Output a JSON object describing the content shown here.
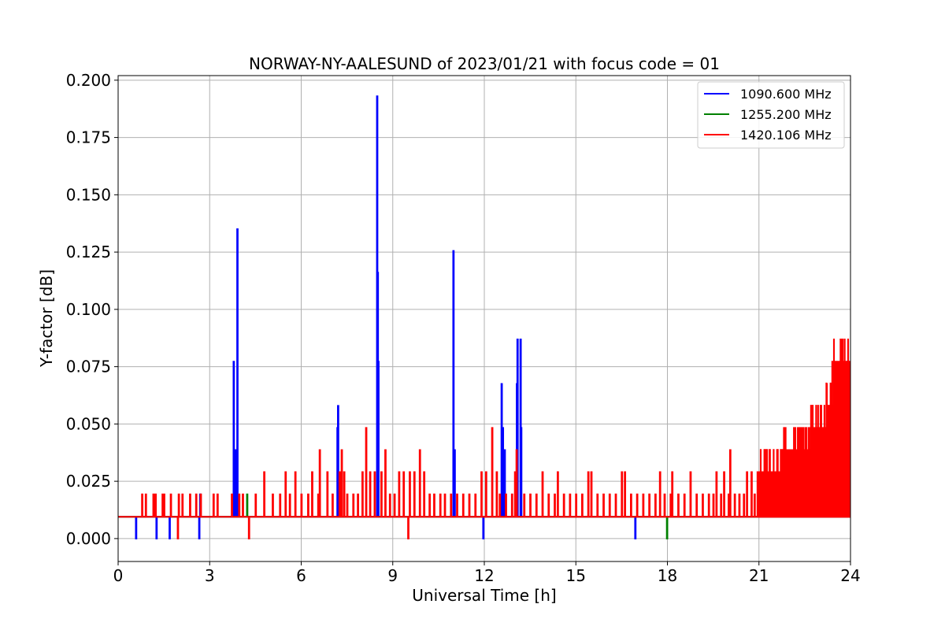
{
  "chart_data": {
    "type": "line",
    "title": "NORWAY-NY-AALESUND of 2023/01/21 with focus code = 01",
    "xlabel": "Universal Time [h]",
    "ylabel": "Y-factor [dB]",
    "xlim": [
      0,
      24
    ],
    "ylim": [
      -0.01,
      0.202
    ],
    "xticks": [
      0,
      3,
      6,
      9,
      12,
      15,
      18,
      21,
      24
    ],
    "xtick_labels": [
      "0",
      "3",
      "6",
      "9",
      "12",
      "15",
      "18",
      "21",
      "24"
    ],
    "yticks": [
      0.0,
      0.025,
      0.05,
      0.075,
      0.1,
      0.125,
      0.15,
      0.175,
      0.2
    ],
    "ytick_labels": [
      "0.000",
      "0.025",
      "0.050",
      "0.075",
      "0.100",
      "0.125",
      "0.150",
      "0.175",
      "0.200"
    ],
    "grid": true,
    "legend_position": "top-right",
    "baseline": 0.0095,
    "series": [
      {
        "name": "1090.600 MHz",
        "color": "#0000ff",
        "spikes": [
          [
            0.58,
            0.0
          ],
          [
            1.25,
            0.0
          ],
          [
            1.68,
            0.0
          ],
          [
            2.65,
            0.0
          ],
          [
            2.68,
            0.0193
          ],
          [
            3.78,
            0.0772
          ],
          [
            3.84,
            0.0386
          ],
          [
            3.9,
            0.135
          ],
          [
            7.18,
            0.0483
          ],
          [
            7.2,
            0.0579
          ],
          [
            8.48,
            0.193
          ],
          [
            8.5,
            0.116
          ],
          [
            8.52,
            0.0772
          ],
          [
            10.98,
            0.1255
          ],
          [
            11.02,
            0.0386
          ],
          [
            11.96,
            0.0
          ],
          [
            12.56,
            0.0675
          ],
          [
            12.6,
            0.0483
          ],
          [
            12.64,
            0.0386
          ],
          [
            12.66,
            0.0386
          ],
          [
            13.06,
            0.0675
          ],
          [
            13.08,
            0.0869
          ],
          [
            13.18,
            0.0869
          ],
          [
            13.2,
            0.0483
          ],
          [
            16.94,
            0.0
          ],
          [
            23.9,
            0.0772
          ],
          [
            23.94,
            0.0675
          ]
        ]
      },
      {
        "name": "1255.200 MHz",
        "color": "#008000",
        "spikes": [
          [
            4.22,
            0.0193
          ],
          [
            17.98,
            0.0
          ]
        ]
      },
      {
        "name": "1420.106 MHz",
        "color": "#ff0000",
        "spikes": [
          [
            0.78,
            0.0193
          ],
          [
            0.9,
            0.0193
          ],
          [
            1.15,
            0.0193
          ],
          [
            1.22,
            0.0193
          ],
          [
            1.45,
            0.0193
          ],
          [
            1.5,
            0.0193
          ],
          [
            1.72,
            0.0193
          ],
          [
            1.95,
            0.0
          ],
          [
            1.98,
            0.0193
          ],
          [
            2.1,
            0.0193
          ],
          [
            2.35,
            0.0193
          ],
          [
            2.55,
            0.0193
          ],
          [
            2.7,
            0.0193
          ],
          [
            3.12,
            0.0193
          ],
          [
            3.25,
            0.0193
          ],
          [
            3.72,
            0.0193
          ],
          [
            3.96,
            0.0193
          ],
          [
            4.08,
            0.0193
          ],
          [
            4.28,
            0.0
          ],
          [
            4.5,
            0.0193
          ],
          [
            4.78,
            0.029
          ],
          [
            5.06,
            0.0193
          ],
          [
            5.3,
            0.0193
          ],
          [
            5.48,
            0.029
          ],
          [
            5.62,
            0.0193
          ],
          [
            5.8,
            0.029
          ],
          [
            6.0,
            0.0193
          ],
          [
            6.22,
            0.0193
          ],
          [
            6.35,
            0.029
          ],
          [
            6.55,
            0.0193
          ],
          [
            6.6,
            0.0386
          ],
          [
            6.85,
            0.029
          ],
          [
            7.02,
            0.0193
          ],
          [
            7.25,
            0.029
          ],
          [
            7.32,
            0.0386
          ],
          [
            7.4,
            0.029
          ],
          [
            7.5,
            0.0193
          ],
          [
            7.7,
            0.0193
          ],
          [
            7.85,
            0.0193
          ],
          [
            8.0,
            0.029
          ],
          [
            8.12,
            0.0483
          ],
          [
            8.25,
            0.029
          ],
          [
            8.4,
            0.029
          ],
          [
            8.62,
            0.029
          ],
          [
            8.75,
            0.0386
          ],
          [
            8.9,
            0.0193
          ],
          [
            9.05,
            0.0193
          ],
          [
            9.2,
            0.029
          ],
          [
            9.35,
            0.029
          ],
          [
            9.5,
            0.0
          ],
          [
            9.55,
            0.029
          ],
          [
            9.7,
            0.029
          ],
          [
            9.88,
            0.0386
          ],
          [
            10.02,
            0.029
          ],
          [
            10.2,
            0.0193
          ],
          [
            10.35,
            0.0193
          ],
          [
            10.55,
            0.0193
          ],
          [
            10.7,
            0.0193
          ],
          [
            10.9,
            0.0193
          ],
          [
            11.1,
            0.0193
          ],
          [
            11.3,
            0.0193
          ],
          [
            11.5,
            0.0193
          ],
          [
            11.7,
            0.0193
          ],
          [
            11.9,
            0.029
          ],
          [
            12.05,
            0.029
          ],
          [
            12.25,
            0.0483
          ],
          [
            12.4,
            0.029
          ],
          [
            12.5,
            0.0193
          ],
          [
            12.7,
            0.0193
          ],
          [
            12.9,
            0.0193
          ],
          [
            13.0,
            0.029
          ],
          [
            13.05,
            0.0386
          ],
          [
            13.3,
            0.0193
          ],
          [
            13.5,
            0.0193
          ],
          [
            13.7,
            0.0193
          ],
          [
            13.9,
            0.029
          ],
          [
            14.1,
            0.0193
          ],
          [
            14.3,
            0.0193
          ],
          [
            14.4,
            0.029
          ],
          [
            14.6,
            0.0193
          ],
          [
            14.8,
            0.0193
          ],
          [
            15.0,
            0.0193
          ],
          [
            15.2,
            0.0193
          ],
          [
            15.4,
            0.029
          ],
          [
            15.5,
            0.029
          ],
          [
            15.7,
            0.0193
          ],
          [
            15.9,
            0.0193
          ],
          [
            16.1,
            0.0193
          ],
          [
            16.3,
            0.0193
          ],
          [
            16.5,
            0.029
          ],
          [
            16.6,
            0.029
          ],
          [
            16.8,
            0.0193
          ],
          [
            17.0,
            0.0193
          ],
          [
            17.2,
            0.0193
          ],
          [
            17.4,
            0.0193
          ],
          [
            17.6,
            0.0193
          ],
          [
            17.75,
            0.029
          ],
          [
            17.9,
            0.0193
          ],
          [
            18.1,
            0.0193
          ],
          [
            18.15,
            0.029
          ],
          [
            18.35,
            0.0193
          ],
          [
            18.55,
            0.0193
          ],
          [
            18.75,
            0.029
          ],
          [
            18.95,
            0.0193
          ],
          [
            19.15,
            0.0193
          ],
          [
            19.35,
            0.0193
          ],
          [
            19.5,
            0.0193
          ],
          [
            19.6,
            0.029
          ],
          [
            19.75,
            0.0193
          ],
          [
            19.85,
            0.029
          ],
          [
            20.0,
            0.0193
          ],
          [
            20.05,
            0.0386
          ],
          [
            20.2,
            0.0193
          ],
          [
            20.35,
            0.0193
          ],
          [
            20.5,
            0.0193
          ],
          [
            20.6,
            0.029
          ],
          [
            20.75,
            0.029
          ],
          [
            20.85,
            0.0193
          ],
          [
            20.95,
            0.029
          ],
          [
            21.05,
            0.0193
          ]
        ],
        "dense_tail": {
          "x_range": [
            21.0,
            24.0
          ],
          "level_steps": [
            [
              21.0,
              0.029
            ],
            [
              21.8,
              0.0386
            ],
            [
              22.7,
              0.0483
            ],
            [
              23.2,
              0.058
            ],
            [
              23.45,
              0.0772
            ]
          ],
          "peaks": [
            [
              21.85,
              0.0483
            ],
            [
              22.65,
              0.0483
            ],
            [
              22.95,
              0.0483
            ],
            [
              23.1,
              0.0483
            ],
            [
              23.22,
              0.0675
            ],
            [
              23.4,
              0.0772
            ],
            [
              23.58,
              0.0772
            ],
            [
              23.62,
              0.0772
            ],
            [
              23.78,
              0.0675
            ],
            [
              23.88,
              0.058
            ]
          ]
        }
      }
    ]
  }
}
